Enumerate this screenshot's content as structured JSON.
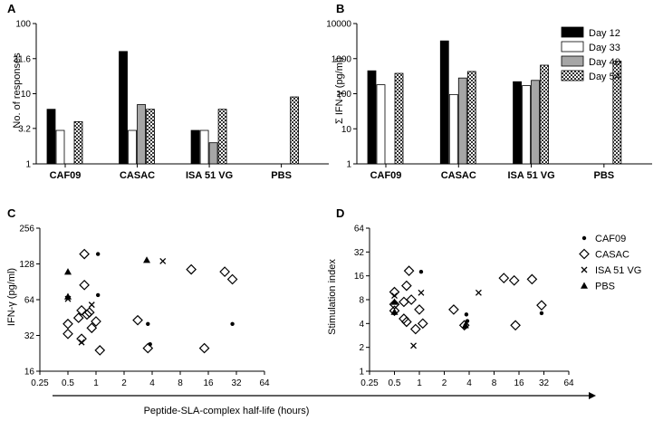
{
  "chart_data": [
    {
      "panel": "A",
      "type": "bar",
      "yscale": "log",
      "ylabel": "No. of responses",
      "ylim": [
        1,
        100
      ],
      "yticks": [
        "1",
        "3.2",
        "10",
        "31.6",
        "100"
      ],
      "categories": [
        "CAF09",
        "CASAC",
        "ISA 51 VG",
        "PBS"
      ],
      "series": [
        {
          "name": "Day 12",
          "values": [
            6,
            40,
            3,
            null
          ]
        },
        {
          "name": "Day 33",
          "values": [
            3,
            3,
            3,
            null
          ]
        },
        {
          "name": "Day 40",
          "values": [
            null,
            7,
            2,
            null
          ]
        },
        {
          "name": "Day 54",
          "values": [
            4,
            6,
            6,
            9
          ]
        }
      ]
    },
    {
      "panel": "B",
      "type": "bar",
      "yscale": "log",
      "ylabel": "Σ IFN-γ (pg/ml)",
      "ylim": [
        1,
        10000
      ],
      "yticks": [
        "1",
        "10",
        "100",
        "1000",
        "10000"
      ],
      "categories": [
        "CAF09",
        "CASAC",
        "ISA 51 VG",
        "PBS"
      ],
      "series": [
        {
          "name": "Day 12",
          "values": [
            450,
            3200,
            220,
            null
          ]
        },
        {
          "name": "Day 33",
          "values": [
            180,
            95,
            170,
            null
          ]
        },
        {
          "name": "Day 40",
          "values": [
            null,
            280,
            240,
            null
          ]
        },
        {
          "name": "Day 54",
          "values": [
            380,
            430,
            650,
            850
          ]
        }
      ]
    },
    {
      "panel": "C",
      "type": "scatter",
      "xscale": "log2",
      "yscale": "log2",
      "ylabel": "IFN-γ (pg/ml)",
      "xlim": [
        0.25,
        64
      ],
      "ylim": [
        16,
        256
      ],
      "yticks": [
        "16",
        "32",
        "64",
        "128",
        "256"
      ],
      "series": [
        {
          "name": "CAF09",
          "points": [
            [
              1.05,
              155
            ],
            [
              1.05,
              70
            ],
            [
              3.6,
              40
            ],
            [
              3.8,
              27
            ],
            [
              29,
              40
            ]
          ]
        },
        {
          "name": "CASAC",
          "points": [
            [
              0.5,
              33
            ],
            [
              0.5,
              40
            ],
            [
              0.75,
              155
            ],
            [
              0.75,
              85
            ],
            [
              0.65,
              45
            ],
            [
              0.7,
              52
            ],
            [
              0.8,
              48
            ],
            [
              0.85,
              50
            ],
            [
              0.7,
              30
            ],
            [
              0.9,
              37
            ],
            [
              1.0,
              42
            ],
            [
              1.1,
              24
            ],
            [
              2.8,
              43
            ],
            [
              3.6,
              25
            ],
            [
              10.5,
              115
            ],
            [
              14.5,
              25
            ],
            [
              24,
              110
            ],
            [
              29,
              95
            ]
          ]
        },
        {
          "name": "ISA 51 VG",
          "points": [
            [
              0.5,
              65
            ],
            [
              0.7,
              28
            ],
            [
              0.9,
              58
            ],
            [
              5.2,
              135
            ]
          ]
        },
        {
          "name": "PBS",
          "points": [
            [
              0.5,
              110
            ],
            [
              0.5,
              68
            ],
            [
              3.5,
              138
            ]
          ]
        }
      ]
    },
    {
      "panel": "D",
      "type": "scatter",
      "xscale": "log2",
      "yscale": "log2",
      "ylabel": "Stimulation index",
      "xlim": [
        0.25,
        64
      ],
      "ylim": [
        1,
        64
      ],
      "yticks": [
        "1",
        "2",
        "4",
        "8",
        "16",
        "32",
        "64"
      ],
      "series": [
        {
          "name": "CAF09",
          "points": [
            [
              1.05,
              18
            ],
            [
              3.7,
              5.2
            ],
            [
              3.8,
              4.3
            ],
            [
              3.6,
              3.8
            ],
            [
              3.6,
              3.6
            ],
            [
              30,
              5.4
            ]
          ]
        },
        {
          "name": "CASAC",
          "points": [
            [
              0.5,
              10
            ],
            [
              0.5,
              7
            ],
            [
              0.5,
              5.8
            ],
            [
              0.75,
              18.5
            ],
            [
              0.7,
              12
            ],
            [
              0.65,
              7.5
            ],
            [
              0.8,
              8
            ],
            [
              0.65,
              4.6
            ],
            [
              0.7,
              4.2
            ],
            [
              0.9,
              3.4
            ],
            [
              1.0,
              6
            ],
            [
              1.1,
              4
            ],
            [
              2.6,
              6
            ],
            [
              3.5,
              3.8
            ],
            [
              10.5,
              15
            ],
            [
              14,
              14
            ],
            [
              14.5,
              3.8
            ],
            [
              23,
              14.5
            ],
            [
              30,
              6.8
            ]
          ]
        },
        {
          "name": "ISA 51 VG",
          "points": [
            [
              0.5,
              9
            ],
            [
              0.85,
              2.1
            ],
            [
              1.05,
              9.8
            ],
            [
              5.2,
              9.8
            ]
          ]
        },
        {
          "name": "PBS",
          "points": [
            [
              0.5,
              7.5
            ],
            [
              0.5,
              5.6
            ],
            [
              3.6,
              3.8
            ]
          ]
        }
      ]
    }
  ],
  "x_ticks": [
    "0.25",
    "0.5",
    "1",
    "2",
    "4",
    "8",
    "16",
    "32",
    "64"
  ],
  "x_axis_title": "Peptide-SLA-complex half-life (hours)",
  "bar_legend": [
    "Day 12",
    "Day 33",
    "Day 40",
    "Day 54"
  ],
  "scatter_legend": [
    "CAF09",
    "CASAC",
    "ISA 51 VG",
    "PBS"
  ],
  "panel_labels": [
    "A",
    "B",
    "C",
    "D"
  ]
}
